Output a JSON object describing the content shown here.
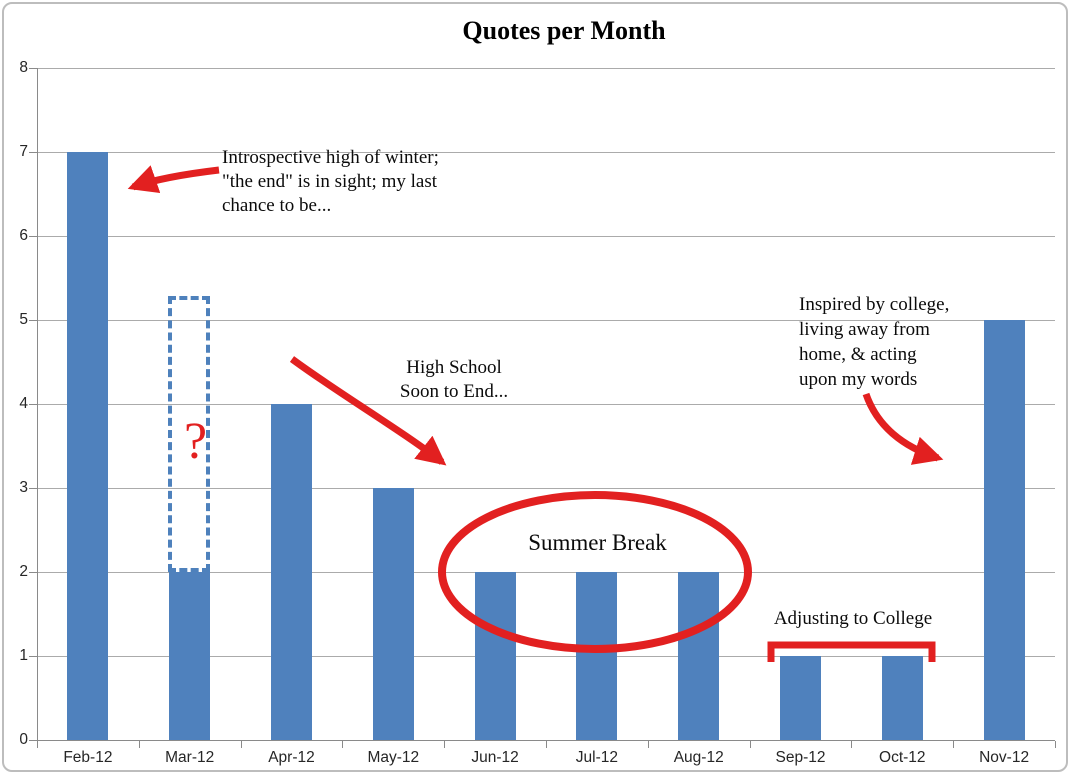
{
  "title": "Quotes per Month",
  "colors": {
    "bar_blue": "#4f81bd",
    "annotation_red": "#e22020",
    "dashed_outline_blue": "#4e81bc",
    "gridline_gray": "#ababab",
    "axis_gray": "#8a8a8a"
  },
  "chart_data": {
    "type": "bar",
    "title": "Quotes per Month",
    "categories": [
      "Feb-12",
      "Mar-12",
      "Apr-12",
      "May-12",
      "Jun-12",
      "Jul-12",
      "Aug-12",
      "Sep-12",
      "Oct-12",
      "Nov-12"
    ],
    "values": [
      7,
      2,
      4,
      3,
      2,
      2,
      2,
      1,
      1,
      5
    ],
    "xlabel": "",
    "ylabel": "",
    "ylim": [
      0,
      8
    ],
    "ytick_step": 1,
    "grid": "horizontal",
    "legend": false,
    "bar_color": "#4f81bd",
    "annotations": {
      "feb_note": "Introspective high of winter;\n\"the end\" is in sight; my last\nchance to be...",
      "high_school_note": "High School\nSoon to End...",
      "summer_break_label": "Summer Break",
      "adjusting_label": "Adjusting to College",
      "college_note": "Inspired by college,\nliving away from\nhome, & acting\nupon my words",
      "question_mark": "?",
      "dashed_outline": {
        "month": "Mar-12",
        "outline_top_value": 5.3
      }
    }
  }
}
